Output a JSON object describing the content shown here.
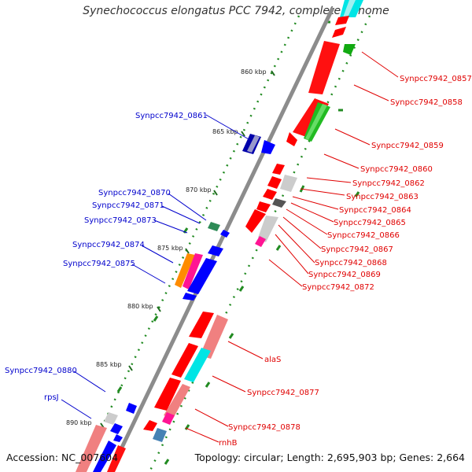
{
  "title": "Synechococcus elongatus PCC 7942, complete genome",
  "footer": {
    "accession": "Accession: NC_007604",
    "topology": "Topology: circular; Length: 2,695,903 bp; Genes: 2,664"
  },
  "scale_ticks": [
    "860 kbp",
    "865 kbp",
    "870 kbp",
    "875 kbp",
    "880 kbp",
    "885 kbp",
    "890 kbp"
  ],
  "left_labels": [
    "Synpcc7942_0861",
    "Synpcc7942_0870",
    "Synpcc7942_0871",
    "Synpcc7942_0873",
    "Synpcc7942_0874",
    "Synpcc7942_0875",
    "Synpcc7942_0880",
    "rpsJ"
  ],
  "right_labels": [
    "Synpcc7942_0857",
    "Synpcc7942_0858",
    "Synpcc7942_0859",
    "Synpcc7942_0860",
    "Synpcc7942_0862",
    "Synpcc7942_0863",
    "Synpcc7942_0864",
    "Synpcc7942_0865",
    "Synpcc7942_0866",
    "Synpcc7942_0867",
    "Synpcc7942_0868",
    "Synpcc7942_0869",
    "Synpcc7942_0872",
    "alaS",
    "Synpcc7942_0877",
    "Synpcc7942_0878",
    "rnhB"
  ],
  "colors": {
    "forward_gene": "#ff0000",
    "reverse_gene": "#0000ff",
    "forward_label": "#e00000",
    "reverse_label": "#0000cc",
    "backbone": "#808080",
    "gc_marks": "#228b22"
  }
}
